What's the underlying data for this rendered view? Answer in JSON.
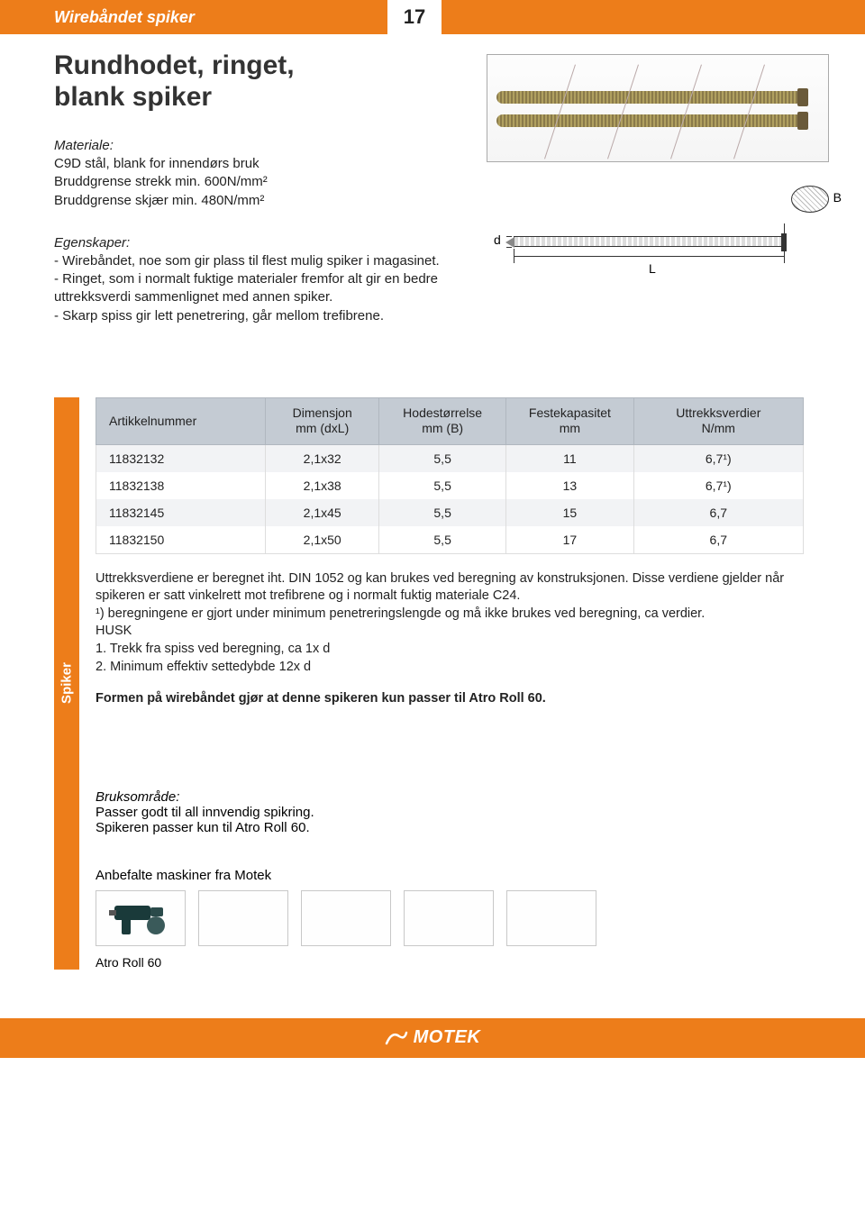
{
  "header": {
    "section_title": "Wirebåndet spiker",
    "page_number": "17"
  },
  "main_title": "Rundhodet, ringet,\nblank spiker",
  "material": {
    "label": "Materiale:",
    "text": "C9D stål, blank for innendørs bruk\nBruddgrense strekk min. 600N/mm²\nBruddgrense skjær min. 480N/mm²"
  },
  "properties": {
    "label": "Egenskaper:",
    "lines": [
      "  - Wirebåndet, noe som gir plass til flest mulig spiker i magasinet.",
      "  - Ringet, som i normalt fuktige materialer fremfor alt gir en bedre uttrekksverdi sammenlignet med annen spiker.",
      "  - Skarp spiss gir lett penetrering, går mellom trefibrene."
    ]
  },
  "diagram": {
    "d_label": "d",
    "L_label": "L",
    "B_label": "B"
  },
  "table": {
    "columns": [
      "Artikkelnummer",
      "Dimensjon\nmm (dxL)",
      "Hodestørrelse\nmm (B)",
      "Festekapasitet\nmm",
      "Uttrekksverdier\nN/mm"
    ],
    "rows": [
      [
        "11832132",
        "2,1x32",
        "5,5",
        "11",
        "6,7¹)"
      ],
      [
        "11832138",
        "2,1x38",
        "5,5",
        "13",
        "6,7¹)"
      ],
      [
        "11832145",
        "2,1x45",
        "5,5",
        "15",
        "6,7"
      ],
      [
        "11832150",
        "2,1x50",
        "5,5",
        "17",
        "6,7"
      ]
    ]
  },
  "side_tab": "Spiker",
  "notes": {
    "para": "Uttrekksverdiene er beregnet iht. DIN 1052 og kan brukes ved beregning av konstruksjonen. Disse verdiene gjelder når spikeren er satt vinkelrett mot trefibrene og i normalt fuktig materiale C24.\n¹) beregningene er gjort under minimum penetreringslengde og må ikke brukes ved beregning, ca verdier.\nHUSK\n1. Trekk fra spiss ved beregning, ca 1x d\n2. Minimum effektiv settedybde 12x d",
    "bold": "Formen på wirebåndet gjør at denne spikeren kun passer til Atro Roll 60."
  },
  "usage": {
    "label": "Bruksområde:",
    "text": "Passer godt til all innvendig spikring.\nSpikeren passer kun til Atro Roll 60."
  },
  "machines": {
    "label": "Anbefalte maskiner fra Motek",
    "name": "Atro Roll 60"
  },
  "footer": {
    "brand": "MOTEK"
  },
  "colors": {
    "orange": "#ed7d1a",
    "header_grey": "#c4cbd3",
    "row_stripe": "#f2f3f5"
  }
}
